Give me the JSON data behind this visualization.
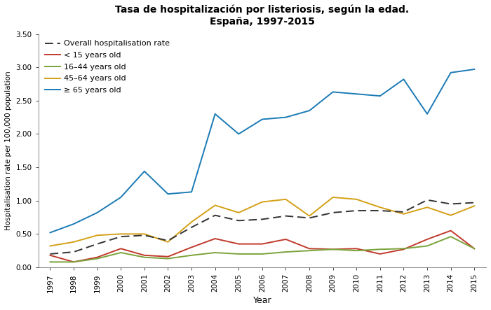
{
  "title_line1": "Tasa de hospitalización por listeriosis, según la edad.",
  "title_line2": "España, 1997-2015",
  "xlabel": "Year",
  "ylabel": "Hospitalisation rate per 100,000 population",
  "years": [
    1997,
    1998,
    1999,
    2000,
    2001,
    2002,
    2003,
    2004,
    2005,
    2006,
    2007,
    2008,
    2009,
    2010,
    2011,
    2012,
    2013,
    2014,
    2015
  ],
  "overall": [
    0.2,
    0.23,
    0.35,
    0.46,
    0.48,
    0.4,
    0.6,
    0.78,
    0.7,
    0.72,
    0.77,
    0.74,
    0.82,
    0.85,
    0.85,
    0.83,
    1.01,
    0.95,
    0.97
  ],
  "lt15": [
    0.18,
    0.08,
    0.15,
    0.28,
    0.18,
    0.16,
    0.3,
    0.43,
    0.35,
    0.35,
    0.42,
    0.28,
    0.27,
    0.28,
    0.2,
    0.27,
    0.42,
    0.55,
    0.28
  ],
  "y16_44": [
    0.08,
    0.08,
    0.13,
    0.22,
    0.15,
    0.13,
    0.18,
    0.22,
    0.2,
    0.2,
    0.23,
    0.25,
    0.27,
    0.25,
    0.27,
    0.28,
    0.32,
    0.46,
    0.28
  ],
  "y45_64": [
    0.32,
    0.38,
    0.48,
    0.5,
    0.5,
    0.38,
    0.68,
    0.93,
    0.82,
    0.98,
    1.02,
    0.77,
    1.05,
    1.02,
    0.9,
    0.8,
    0.9,
    0.78,
    0.92
  ],
  "y65plus": [
    0.52,
    0.65,
    0.82,
    1.05,
    1.44,
    1.1,
    1.13,
    2.3,
    2.0,
    2.22,
    2.25,
    2.35,
    2.63,
    2.6,
    2.57,
    2.82,
    2.3,
    2.92,
    2.97
  ],
  "color_overall": "#333333",
  "color_lt15": "#c0392b",
  "color_16_44": "#7aa33a",
  "color_45_64": "#d4a017",
  "color_65plus": "#1a7ab5",
  "ylim": [
    0.0,
    3.5
  ],
  "yticks": [
    0.0,
    0.5,
    1.0,
    1.5,
    2.0,
    2.5,
    3.0,
    3.5
  ],
  "ytick_labels": [
    "0.00",
    "0.50",
    "1.00",
    "1.50",
    "2.00",
    "2.50",
    "3.00",
    "3.50"
  ],
  "legend_labels": [
    "Overall hospitalisation rate",
    "< 15 years old",
    "16–44 years old",
    "45–64 years old",
    "≥ 65 years old"
  ]
}
